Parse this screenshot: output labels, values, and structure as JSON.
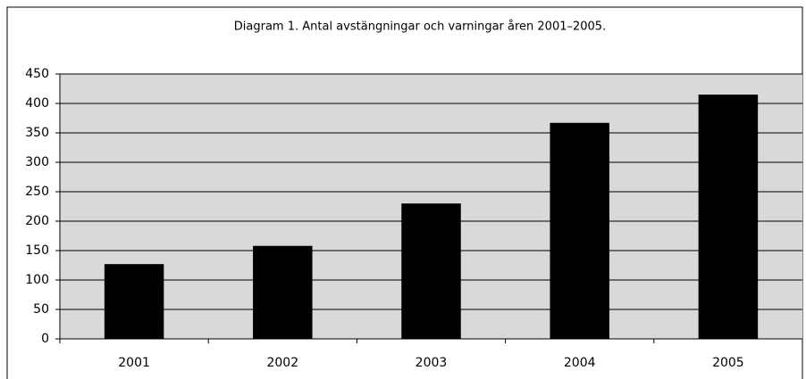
{
  "chart_data": {
    "type": "bar",
    "title": "Diagram 1. Antal avstängningar och varningar åren 2001–2005.",
    "categories": [
      "2001",
      "2002",
      "2003",
      "2004",
      "2005"
    ],
    "values": [
      127,
      158,
      230,
      367,
      415
    ],
    "color": "#000000",
    "ylim": [
      0,
      450
    ],
    "yticks": [
      0,
      50,
      100,
      150,
      200,
      250,
      300,
      350,
      400,
      450
    ],
    "grid": true
  }
}
